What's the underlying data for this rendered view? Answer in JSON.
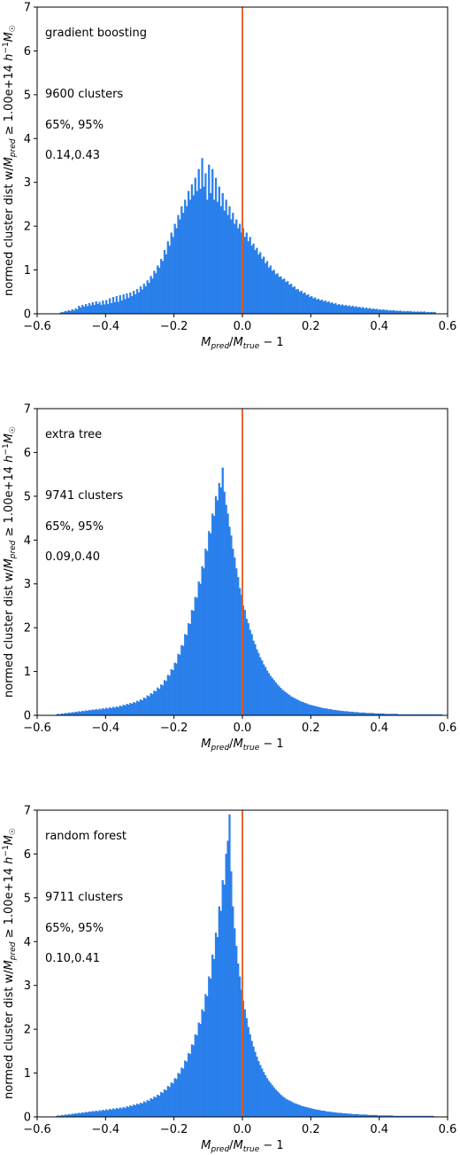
{
  "colors": {
    "bar": "#2b83f0",
    "bar_edge": "#1f6fd6",
    "vline": "#e8551a",
    "axis": "#000000"
  },
  "axis_labels": {
    "x": "M_pred/M_true − 1",
    "y": "normed cluster dist w/M_pred ≥ 1.00e+14 h⁻¹M☉"
  },
  "chart_data": [
    {
      "type": "bar",
      "title": "",
      "xlim": [
        -0.6,
        0.6
      ],
      "ylim": [
        0,
        7
      ],
      "xticks": [
        -0.6,
        -0.4,
        -0.2,
        0.0,
        0.2,
        0.4,
        0.6
      ],
      "xtick_labels": [
        "−0.6",
        "−0.4",
        "−0.2",
        "0.0",
        "0.2",
        "0.4",
        "0.6"
      ],
      "yticks": [
        0,
        1,
        2,
        3,
        4,
        5,
        6,
        7
      ],
      "ytick_labels": [
        "0",
        "1",
        "2",
        "3",
        "4",
        "5",
        "6",
        "7"
      ],
      "vline_x": 0.0,
      "annotations": [
        "gradient boosting",
        "9600 clusters",
        "65%, 95%",
        "0.14,0.43"
      ],
      "bins": {
        "start": -0.6,
        "width": 0.005,
        "values": [
          0,
          0,
          0,
          0,
          0,
          0,
          0,
          0,
          0,
          0,
          0,
          0,
          0,
          0.02,
          0.04,
          0.03,
          0.06,
          0.05,
          0.08,
          0.06,
          0.1,
          0.07,
          0.12,
          0.1,
          0.18,
          0.14,
          0.2,
          0.16,
          0.22,
          0.17,
          0.24,
          0.19,
          0.26,
          0.2,
          0.28,
          0.22,
          0.27,
          0.2,
          0.3,
          0.21,
          0.31,
          0.22,
          0.35,
          0.24,
          0.38,
          0.26,
          0.4,
          0.27,
          0.42,
          0.3,
          0.44,
          0.33,
          0.46,
          0.36,
          0.48,
          0.4,
          0.52,
          0.44,
          0.56,
          0.48,
          0.62,
          0.55,
          0.68,
          0.62,
          0.76,
          0.7,
          0.86,
          0.8,
          0.98,
          0.92,
          1.1,
          1.05,
          1.25,
          1.2,
          1.45,
          1.35,
          1.65,
          1.55,
          1.85,
          1.75,
          2.05,
          1.95,
          2.25,
          2.15,
          2.45,
          2.3,
          2.6,
          2.45,
          2.8,
          2.6,
          2.95,
          2.7,
          3.1,
          2.8,
          3.3,
          2.85,
          3.55,
          2.9,
          3.2,
          2.6,
          3.4,
          2.75,
          3.3,
          2.6,
          3.1,
          2.55,
          2.9,
          2.45,
          2.75,
          2.35,
          2.6,
          2.25,
          2.45,
          2.15,
          2.3,
          2.05,
          2.15,
          1.95,
          2.05,
          1.85,
          1.95,
          1.75,
          1.85,
          1.65,
          1.75,
          1.55,
          1.6,
          1.45,
          1.5,
          1.35,
          1.4,
          1.25,
          1.3,
          1.15,
          1.2,
          1.05,
          1.1,
          0.98,
          1.0,
          0.9,
          0.92,
          0.84,
          0.85,
          0.78,
          0.8,
          0.72,
          0.74,
          0.66,
          0.68,
          0.6,
          0.62,
          0.55,
          0.56,
          0.5,
          0.52,
          0.46,
          0.48,
          0.42,
          0.44,
          0.38,
          0.4,
          0.35,
          0.37,
          0.32,
          0.34,
          0.3,
          0.32,
          0.28,
          0.3,
          0.26,
          0.28,
          0.24,
          0.26,
          0.22,
          0.24,
          0.2,
          0.22,
          0.19,
          0.21,
          0.18,
          0.2,
          0.17,
          0.19,
          0.16,
          0.18,
          0.15,
          0.17,
          0.14,
          0.16,
          0.13,
          0.15,
          0.12,
          0.14,
          0.11,
          0.13,
          0.1,
          0.12,
          0.1,
          0.11,
          0.09,
          0.1,
          0.08,
          0.1,
          0.08,
          0.09,
          0.07,
          0.08,
          0.07,
          0.08,
          0.06,
          0.07,
          0.06,
          0.07,
          0.05,
          0.06,
          0.05,
          0.06,
          0.05,
          0.06,
          0.04,
          0.05,
          0.04,
          0.05,
          0.04,
          0.05,
          0.04,
          0.05,
          0.03,
          0.04,
          0.03,
          0.04,
          0.03,
          0.04
        ]
      }
    },
    {
      "type": "bar",
      "title": "",
      "xlim": [
        -0.6,
        0.6
      ],
      "ylim": [
        0,
        7
      ],
      "xticks": [
        -0.6,
        -0.4,
        -0.2,
        0.0,
        0.2,
        0.4,
        0.6
      ],
      "xtick_labels": [
        "−0.6",
        "−0.4",
        "−0.2",
        "0.0",
        "0.2",
        "0.4",
        "0.6"
      ],
      "yticks": [
        0,
        1,
        2,
        3,
        4,
        5,
        6,
        7
      ],
      "ytick_labels": [
        "0",
        "1",
        "2",
        "3",
        "4",
        "5",
        "6",
        "7"
      ],
      "vline_x": 0.0,
      "annotations": [
        "extra tree",
        "9741 clusters",
        "65%, 95%",
        "0.09,0.40"
      ],
      "bins": {
        "start": -0.6,
        "width": 0.005,
        "values": [
          0,
          0,
          0,
          0,
          0,
          0,
          0,
          0,
          0,
          0,
          0,
          0.02,
          0.03,
          0.02,
          0.04,
          0.03,
          0.05,
          0.04,
          0.06,
          0.05,
          0.07,
          0.06,
          0.08,
          0.07,
          0.09,
          0.08,
          0.1,
          0.09,
          0.11,
          0.1,
          0.12,
          0.11,
          0.13,
          0.12,
          0.14,
          0.12,
          0.15,
          0.13,
          0.16,
          0.14,
          0.17,
          0.15,
          0.18,
          0.16,
          0.19,
          0.17,
          0.2,
          0.18,
          0.22,
          0.2,
          0.24,
          0.22,
          0.26,
          0.24,
          0.28,
          0.26,
          0.3,
          0.28,
          0.33,
          0.31,
          0.36,
          0.34,
          0.4,
          0.38,
          0.45,
          0.43,
          0.5,
          0.48,
          0.56,
          0.54,
          0.63,
          0.6,
          0.7,
          0.68,
          0.8,
          0.78,
          0.92,
          0.9,
          1.05,
          1.03,
          1.2,
          1.18,
          1.4,
          1.38,
          1.6,
          1.58,
          1.85,
          1.83,
          2.1,
          2.08,
          2.4,
          2.38,
          2.7,
          2.68,
          3.05,
          3.0,
          3.4,
          3.35,
          3.8,
          3.75,
          4.2,
          4.15,
          4.6,
          4.55,
          5.0,
          4.9,
          5.3,
          5.2,
          5.65,
          5.1,
          4.8,
          4.6,
          4.3,
          4.1,
          3.8,
          3.6,
          3.35,
          3.15,
          2.9,
          2.75,
          2.5,
          2.4,
          2.2,
          2.1,
          1.95,
          1.85,
          1.7,
          1.62,
          1.5,
          1.42,
          1.32,
          1.25,
          1.16,
          1.1,
          1.02,
          0.96,
          0.9,
          0.85,
          0.8,
          0.75,
          0.7,
          0.66,
          0.62,
          0.58,
          0.55,
          0.52,
          0.49,
          0.46,
          0.43,
          0.41,
          0.39,
          0.37,
          0.35,
          0.33,
          0.31,
          0.3,
          0.28,
          0.27,
          0.25,
          0.24,
          0.23,
          0.22,
          0.21,
          0.2,
          0.19,
          0.18,
          0.17,
          0.16,
          0.16,
          0.15,
          0.14,
          0.14,
          0.13,
          0.12,
          0.12,
          0.11,
          0.11,
          0.1,
          0.1,
          0.09,
          0.09,
          0.09,
          0.08,
          0.08,
          0.08,
          0.07,
          0.07,
          0.07,
          0.06,
          0.06,
          0.06,
          0.06,
          0.05,
          0.05,
          0.05,
          0.05,
          0.05,
          0.04,
          0.04,
          0.04,
          0.04,
          0.04,
          0.04,
          0.03,
          0.03,
          0.03,
          0.03,
          0.03,
          0.03,
          0.03,
          0.03,
          0.02,
          0.02,
          0.02,
          0.02,
          0.02,
          0.02,
          0.02,
          0.02,
          0.02,
          0.02,
          0.02,
          0.02,
          0.02,
          0.02,
          0.02,
          0.02,
          0.02,
          0.02,
          0.02,
          0.02,
          0.02,
          0.02,
          0.02,
          0.02,
          0.02,
          0.02
        ]
      }
    },
    {
      "type": "bar",
      "title": "",
      "xlim": [
        -0.6,
        0.6
      ],
      "ylim": [
        0,
        7
      ],
      "xticks": [
        -0.6,
        -0.4,
        -0.2,
        0.0,
        0.2,
        0.4,
        0.6
      ],
      "xtick_labels": [
        "−0.6",
        "−0.4",
        "−0.2",
        "0.0",
        "0.2",
        "0.4",
        "0.6"
      ],
      "yticks": [
        0,
        1,
        2,
        3,
        4,
        5,
        6,
        7
      ],
      "ytick_labels": [
        "0",
        "1",
        "2",
        "3",
        "4",
        "5",
        "6",
        "7"
      ],
      "vline_x": 0.0,
      "annotations": [
        "random forest",
        "9711 clusters",
        "65%, 95%",
        "0.10,0.41"
      ],
      "bins": {
        "start": -0.6,
        "width": 0.005,
        "values": [
          0,
          0,
          0,
          0,
          0,
          0,
          0,
          0,
          0,
          0,
          0,
          0.02,
          0.03,
          0.02,
          0.04,
          0.03,
          0.05,
          0.04,
          0.06,
          0.05,
          0.07,
          0.06,
          0.08,
          0.07,
          0.09,
          0.08,
          0.1,
          0.09,
          0.11,
          0.1,
          0.12,
          0.11,
          0.13,
          0.12,
          0.14,
          0.12,
          0.15,
          0.13,
          0.16,
          0.14,
          0.17,
          0.15,
          0.18,
          0.16,
          0.19,
          0.17,
          0.2,
          0.18,
          0.21,
          0.19,
          0.22,
          0.2,
          0.24,
          0.22,
          0.26,
          0.24,
          0.28,
          0.26,
          0.3,
          0.28,
          0.32,
          0.3,
          0.35,
          0.33,
          0.38,
          0.36,
          0.42,
          0.4,
          0.46,
          0.44,
          0.5,
          0.48,
          0.56,
          0.54,
          0.62,
          0.6,
          0.7,
          0.68,
          0.78,
          0.76,
          0.88,
          0.86,
          1.0,
          0.98,
          1.12,
          1.1,
          1.28,
          1.26,
          1.45,
          1.43,
          1.65,
          1.63,
          1.88,
          1.86,
          2.15,
          2.12,
          2.45,
          2.4,
          2.8,
          2.75,
          3.2,
          3.15,
          3.7,
          3.6,
          4.2,
          4.1,
          4.8,
          4.7,
          5.4,
          5.3,
          6.0,
          6.3,
          6.9,
          5.6,
          4.8,
          4.3,
          3.9,
          3.5,
          3.2,
          2.9,
          2.65,
          2.45,
          2.25,
          2.05,
          1.88,
          1.73,
          1.6,
          1.48,
          1.37,
          1.27,
          1.18,
          1.1,
          1.02,
          0.95,
          0.88,
          0.82,
          0.77,
          0.72,
          0.67,
          0.62,
          0.58,
          0.54,
          0.5,
          0.47,
          0.44,
          0.41,
          0.39,
          0.37,
          0.35,
          0.33,
          0.31,
          0.3,
          0.28,
          0.27,
          0.25,
          0.24,
          0.23,
          0.22,
          0.21,
          0.2,
          0.19,
          0.18,
          0.17,
          0.16,
          0.16,
          0.15,
          0.14,
          0.14,
          0.13,
          0.12,
          0.12,
          0.11,
          0.11,
          0.1,
          0.1,
          0.09,
          0.09,
          0.09,
          0.08,
          0.08,
          0.08,
          0.07,
          0.07,
          0.07,
          0.06,
          0.06,
          0.06,
          0.06,
          0.05,
          0.05,
          0.05,
          0.05,
          0.05,
          0.04,
          0.04,
          0.04,
          0.04,
          0.04,
          0.04,
          0.03,
          0.03,
          0.03,
          0.03,
          0.03,
          0.03,
          0.03,
          0.03,
          0.03,
          0.02,
          0.02,
          0.02,
          0.02,
          0.02,
          0.02,
          0.02,
          0.02,
          0.02,
          0.02,
          0.02,
          0.02,
          0.02,
          0.02,
          0.02,
          0.02,
          0.02,
          0.02,
          0.02,
          0.02,
          0.02,
          0.02,
          0.02,
          0.02
        ]
      }
    }
  ]
}
